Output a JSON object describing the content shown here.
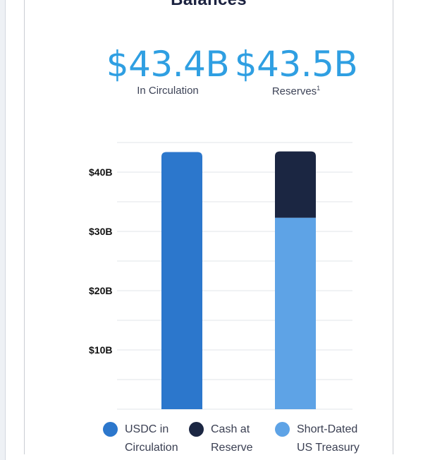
{
  "title": "Balances",
  "metrics": {
    "circulation_value": "$43.4B",
    "circulation_label": "In Circulation",
    "reserves_value": "$43.5B",
    "reserves_label": "Reserves",
    "reserves_footnote": "1"
  },
  "colors": {
    "usdc": "#2c77cc",
    "cash": "#1b2642",
    "treasury": "#5ea3e6",
    "grid": "#e2e5ea",
    "value_text": "#2f9fe2"
  },
  "legend": [
    {
      "label": "USDC in Circulation",
      "color": "#2c77cc"
    },
    {
      "label": "Cash at Reserve",
      "color": "#1b2642"
    },
    {
      "label": "Short-Dated US Treasury",
      "color": "#5ea3e6"
    }
  ],
  "chart_data": {
    "type": "bar",
    "stacked": true,
    "categories": [
      "In Circulation",
      "Reserves"
    ],
    "series": [
      {
        "name": "USDC in Circulation",
        "values": [
          43.4,
          0
        ],
        "color": "#2c77cc"
      },
      {
        "name": "Short-Dated US Treasury",
        "values": [
          0,
          32.3
        ],
        "color": "#5ea3e6"
      },
      {
        "name": "Cash at Reserve",
        "values": [
          0,
          11.2
        ],
        "color": "#1b2642"
      }
    ],
    "yticks": [
      10,
      20,
      30,
      40
    ],
    "ytick_labels": [
      "$10B",
      "$20B",
      "$30B",
      "$40B"
    ],
    "ylim": [
      0,
      45
    ],
    "grid": true,
    "legend_position": "bottom"
  }
}
